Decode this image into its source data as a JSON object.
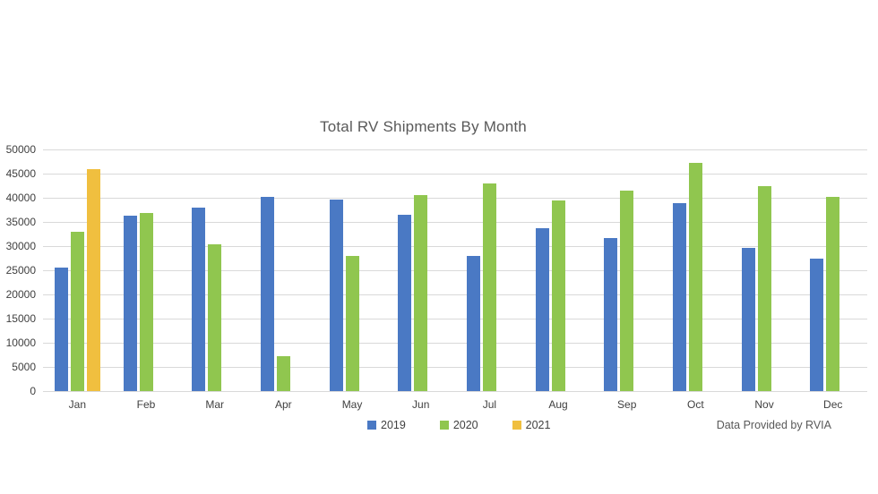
{
  "chart_data": {
    "type": "bar",
    "title": "Total RV Shipments By Month",
    "footnote": "Data Provided by RVIA",
    "categories": [
      "Jan",
      "Feb",
      "Mar",
      "Apr",
      "May",
      "Jun",
      "Jul",
      "Aug",
      "Sep",
      "Oct",
      "Nov",
      "Dec"
    ],
    "series": [
      {
        "name": "2019",
        "color": "#4a79c4",
        "values": [
          25500,
          36300,
          38000,
          40200,
          39700,
          36400,
          28000,
          33700,
          31700,
          38900,
          29700,
          27500
        ]
      },
      {
        "name": "2020",
        "color": "#90c64f",
        "values": [
          33000,
          36900,
          30300,
          7300,
          27900,
          40500,
          43000,
          39500,
          41500,
          47300,
          42500,
          40200
        ]
      },
      {
        "name": "2021",
        "color": "#f0bf3f",
        "values": [
          45900,
          null,
          null,
          null,
          null,
          null,
          null,
          null,
          null,
          null,
          null,
          null
        ]
      }
    ],
    "xlabel": "",
    "ylabel": "",
    "ylim": [
      0,
      50000
    ],
    "ytick_step": 5000,
    "yticks": [
      "0",
      "5000",
      "10000",
      "15000",
      "20000",
      "25000",
      "30000",
      "35000",
      "40000",
      "45000",
      "50000"
    ],
    "grid": true,
    "gridline_color": "#d9d9d9",
    "legend_position": "bottom",
    "legend_entries": [
      "2019",
      "2020",
      "2021"
    ],
    "title_color": "#595959",
    "axis_text_color": "#404040"
  }
}
